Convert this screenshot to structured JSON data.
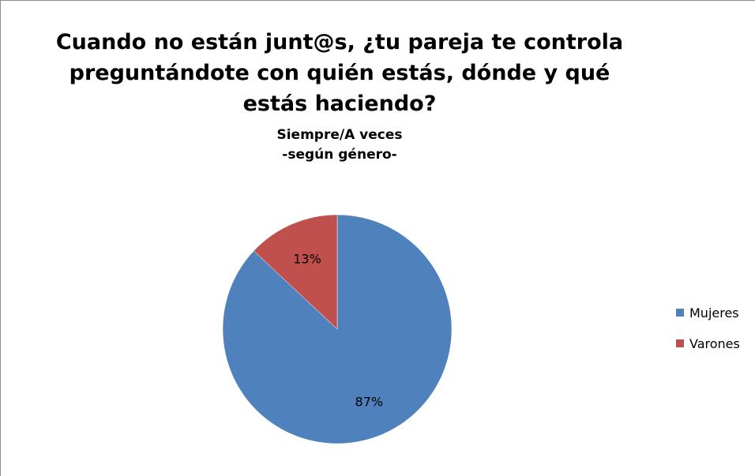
{
  "chart_data": {
    "type": "pie",
    "title": "Cuando no están junt@s, ¿tu pareja te controla preguntándote con quién estás, dónde y qué estás haciendo?",
    "subtitle_line1": "Siempre/A veces",
    "subtitle_line2": "-según género-",
    "categories": [
      "Mujeres",
      "Varones"
    ],
    "values": [
      87,
      13
    ],
    "data_labels": [
      "87%",
      "13%"
    ],
    "colors": [
      "#4F81BD",
      "#C0504D"
    ],
    "legend_position": "right"
  }
}
